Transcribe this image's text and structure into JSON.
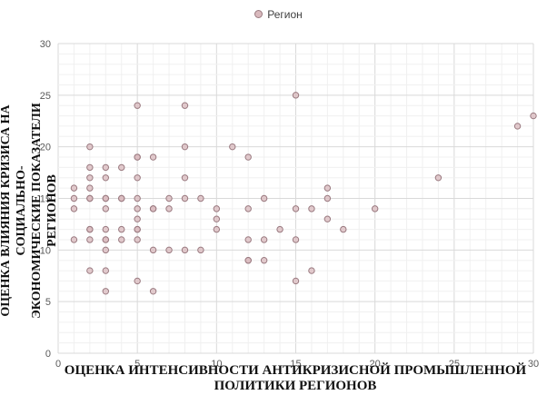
{
  "chart_data": {
    "type": "scatter",
    "legend": {
      "label": "Регион",
      "position": "top"
    },
    "xlabel": "ОЦЕНКА ИНТЕНСИВНОСТИ АНТИКРИЗИСНОЙ ПРОМЫШЛЕННОЙ\nПОЛИТИКИ РЕГИОНОВ",
    "ylabel": "ОЦЕНКА ВЛИЯНИЯ КРИЗИСА НА СОЦИАЛЬНО-\nЭКОНОМИЧЕСКИЕ ПОКАЗАТЕЛИ РЕГИОНОВ",
    "xlim": [
      0,
      30
    ],
    "ylim": [
      0,
      30
    ],
    "xticks": [
      0,
      5,
      10,
      15,
      20,
      25,
      30
    ],
    "yticks": [
      0,
      5,
      10,
      15,
      20,
      25,
      30
    ],
    "grid": true,
    "marker_color": "#d9b9bd",
    "marker_edge": "#9a7a80",
    "points": [
      [
        1,
        16
      ],
      [
        1,
        15
      ],
      [
        1,
        14
      ],
      [
        1,
        11
      ],
      [
        2,
        20
      ],
      [
        2,
        18
      ],
      [
        2,
        17
      ],
      [
        2,
        16
      ],
      [
        2,
        15
      ],
      [
        2,
        15
      ],
      [
        2,
        12
      ],
      [
        2,
        12
      ],
      [
        2,
        11
      ],
      [
        2,
        8
      ],
      [
        3,
        18
      ],
      [
        3,
        17
      ],
      [
        3,
        15
      ],
      [
        3,
        15
      ],
      [
        3,
        14
      ],
      [
        3,
        12
      ],
      [
        3,
        11
      ],
      [
        3,
        11
      ],
      [
        3,
        10
      ],
      [
        3,
        8
      ],
      [
        3,
        6
      ],
      [
        4,
        18
      ],
      [
        4,
        15
      ],
      [
        4,
        15
      ],
      [
        4,
        12
      ],
      [
        4,
        11
      ],
      [
        5,
        24
      ],
      [
        5,
        19
      ],
      [
        5,
        19
      ],
      [
        5,
        17
      ],
      [
        5,
        15
      ],
      [
        5,
        14
      ],
      [
        5,
        13
      ],
      [
        5,
        12
      ],
      [
        5,
        12
      ],
      [
        5,
        11
      ],
      [
        5,
        7
      ],
      [
        6,
        19
      ],
      [
        6,
        14
      ],
      [
        6,
        14
      ],
      [
        6,
        10
      ],
      [
        6,
        6
      ],
      [
        7,
        15
      ],
      [
        7,
        14
      ],
      [
        7,
        10
      ],
      [
        8,
        24
      ],
      [
        8,
        20
      ],
      [
        8,
        17
      ],
      [
        8,
        15
      ],
      [
        8,
        10
      ],
      [
        9,
        15
      ],
      [
        9,
        10
      ],
      [
        10,
        14
      ],
      [
        10,
        13
      ],
      [
        10,
        12
      ],
      [
        11,
        20
      ],
      [
        12,
        19
      ],
      [
        12,
        14
      ],
      [
        12,
        11
      ],
      [
        12,
        9
      ],
      [
        12,
        9
      ],
      [
        13,
        15
      ],
      [
        13,
        11
      ],
      [
        13,
        9
      ],
      [
        14,
        12
      ],
      [
        15,
        25
      ],
      [
        15,
        14
      ],
      [
        15,
        11
      ],
      [
        15,
        7
      ],
      [
        16,
        14
      ],
      [
        16,
        8
      ],
      [
        17,
        16
      ],
      [
        17,
        15
      ],
      [
        17,
        13
      ],
      [
        18,
        12
      ],
      [
        20,
        14
      ],
      [
        24,
        17
      ],
      [
        29,
        22
      ],
      [
        30,
        23
      ]
    ]
  }
}
